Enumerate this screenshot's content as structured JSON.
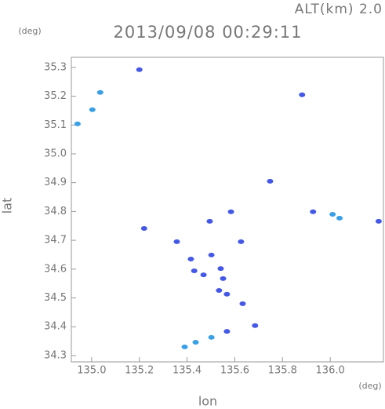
{
  "chart_data": {
    "type": "scatter",
    "title": "2013/09/08 00:29:11",
    "subtitle": "ALT(km) 2.0",
    "x_label": "lon",
    "x_unit": "(deg)",
    "y_label": "lat",
    "y_unit": "(deg)",
    "xlim": [
      134.915,
      136.223
    ],
    "ylim": [
      34.278,
      35.335
    ],
    "xticks": [
      {
        "value": 135.0,
        "label": "135.0"
      },
      135.2,
      135.4,
      135.6,
      135.8,
      {
        "value": 136.0,
        "label": "136.0"
      }
    ],
    "yticks": [
      35.3,
      35.2,
      35.1,
      {
        "value": 35.0,
        "label": "35.0"
      },
      34.9,
      34.8,
      34.7,
      34.6,
      34.5,
      34.4,
      34.3
    ],
    "series": [
      {
        "color": "#4458e6",
        "x": [
          135.2,
          135.882,
          135.748,
          135.928,
          136.203,
          135.584,
          135.495,
          135.22,
          135.357,
          135.626,
          135.502,
          135.416,
          135.541,
          135.43,
          135.469,
          135.551,
          135.534,
          135.567,
          135.633,
          135.567,
          135.685
        ],
        "y": [
          35.292,
          35.205,
          34.905,
          34.799,
          34.766,
          34.799,
          34.766,
          34.741,
          34.695,
          34.695,
          34.649,
          34.635,
          34.602,
          34.594,
          34.58,
          34.567,
          34.526,
          34.513,
          34.48,
          34.384,
          34.404
        ]
      },
      {
        "color": "#3aa0e6",
        "x": [
          135.036,
          135.003,
          134.941,
          136.01,
          136.039,
          135.502,
          135.436,
          135.39
        ],
        "y": [
          35.213,
          35.153,
          35.104,
          34.79,
          34.777,
          34.363,
          34.346,
          34.33
        ]
      }
    ]
  }
}
